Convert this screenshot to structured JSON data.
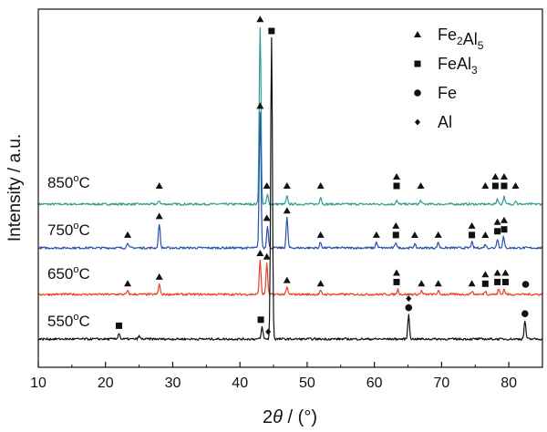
{
  "chart_data": {
    "type": "line",
    "xlabel_prefix": "2",
    "xlabel_theta": "θ",
    "xlabel_suffix": " / (°)",
    "ylabel": "Intensity / a.u.",
    "xlim": [
      10,
      85
    ],
    "xticks": [
      10,
      20,
      30,
      40,
      50,
      60,
      70,
      80
    ],
    "legend": {
      "position": "top-right",
      "entries": [
        {
          "marker": "triangle",
          "base": "Fe",
          "sub1": "2",
          "mid": "Al",
          "sub2": "5"
        },
        {
          "marker": "square",
          "base": "FeAl",
          "sub1": "3",
          "mid": "",
          "sub2": ""
        },
        {
          "marker": "circle",
          "base": "Fe",
          "sub1": "",
          "mid": "",
          "sub2": ""
        },
        {
          "marker": "diamond",
          "base": "Al",
          "sub1": "",
          "mid": "",
          "sub2": ""
        }
      ]
    },
    "series": [
      {
        "temp": "850",
        "unit": "°C",
        "color": "#2e9b93",
        "peaks": [
          [
            43.0,
            0.95
          ],
          [
            44.1,
            0.05
          ],
          [
            47.0,
            0.04
          ],
          [
            52.0,
            0.04
          ],
          [
            28.0,
            0.02
          ],
          [
            63.3,
            0.02
          ],
          [
            66.9,
            0.02
          ],
          [
            78.3,
            0.03
          ],
          [
            79.3,
            0.04
          ],
          [
            81.0,
            0.02
          ]
        ],
        "markers": [
          {
            "x": 28.0,
            "s": "t"
          },
          {
            "x": 43.0,
            "s": "t"
          },
          {
            "x": 44.0,
            "s": "t"
          },
          {
            "x": 47.0,
            "s": "t"
          },
          {
            "x": 52.0,
            "s": "t"
          },
          {
            "x": 63.3,
            "s": "s"
          },
          {
            "x": 63.3,
            "s": "t"
          },
          {
            "x": 66.9,
            "s": "t"
          },
          {
            "x": 76.5,
            "s": "t"
          },
          {
            "x": 78.0,
            "s": "s"
          },
          {
            "x": 78.0,
            "s": "t"
          },
          {
            "x": 79.3,
            "s": "s"
          },
          {
            "x": 79.3,
            "s": "t"
          },
          {
            "x": 81.0,
            "s": "t"
          }
        ]
      },
      {
        "temp": "750",
        "unit": "°C",
        "color": "#2b4fad",
        "peaks": [
          [
            43.0,
            0.72
          ],
          [
            44.1,
            0.12
          ],
          [
            47.0,
            0.16
          ],
          [
            28.0,
            0.13
          ],
          [
            23.3,
            0.03
          ],
          [
            52.0,
            0.03
          ],
          [
            60.3,
            0.03
          ],
          [
            63.2,
            0.03
          ],
          [
            66.0,
            0.02
          ],
          [
            69.5,
            0.03
          ],
          [
            74.5,
            0.03
          ],
          [
            76.5,
            0.02
          ],
          [
            78.3,
            0.05
          ],
          [
            79.2,
            0.06
          ]
        ],
        "markers": [
          {
            "x": 23.3,
            "s": "t"
          },
          {
            "x": 28.0,
            "s": "t"
          },
          {
            "x": 43.0,
            "s": "t"
          },
          {
            "x": 44.0,
            "s": "t"
          },
          {
            "x": 47.0,
            "s": "t"
          },
          {
            "x": 52.0,
            "s": "t"
          },
          {
            "x": 60.3,
            "s": "t"
          },
          {
            "x": 63.2,
            "s": "s"
          },
          {
            "x": 63.2,
            "s": "t"
          },
          {
            "x": 66.0,
            "s": "t"
          },
          {
            "x": 69.5,
            "s": "t"
          },
          {
            "x": 74.5,
            "s": "s"
          },
          {
            "x": 74.5,
            "s": "t"
          },
          {
            "x": 76.5,
            "s": "t"
          },
          {
            "x": 78.3,
            "s": "s"
          },
          {
            "x": 78.3,
            "s": "t"
          },
          {
            "x": 79.3,
            "s": "s"
          },
          {
            "x": 79.3,
            "s": "t"
          }
        ]
      },
      {
        "temp": "650",
        "unit": "°C",
        "color": "#e8402a",
        "peaks": [
          [
            43.0,
            0.2
          ],
          [
            44.0,
            0.18
          ],
          [
            47.0,
            0.04
          ],
          [
            28.0,
            0.06
          ],
          [
            23.3,
            0.02
          ],
          [
            52.0,
            0.02
          ],
          [
            63.5,
            0.03
          ],
          [
            67.0,
            0.02
          ],
          [
            69.5,
            0.02
          ],
          [
            74.5,
            0.02
          ],
          [
            76.5,
            0.02
          ],
          [
            78.5,
            0.03
          ],
          [
            79.3,
            0.03
          ]
        ],
        "markers": [
          {
            "x": 23.3,
            "s": "t"
          },
          {
            "x": 28.0,
            "s": "t"
          },
          {
            "x": 43.0,
            "s": "t"
          },
          {
            "x": 44.0,
            "s": "t"
          },
          {
            "x": 47.0,
            "s": "t"
          },
          {
            "x": 52.0,
            "s": "t"
          },
          {
            "x": 63.3,
            "s": "s"
          },
          {
            "x": 63.3,
            "s": "t"
          },
          {
            "x": 67.0,
            "s": "t"
          },
          {
            "x": 69.5,
            "s": "t"
          },
          {
            "x": 74.5,
            "s": "t"
          },
          {
            "x": 76.5,
            "s": "s"
          },
          {
            "x": 76.5,
            "s": "t"
          },
          {
            "x": 78.3,
            "s": "s"
          },
          {
            "x": 78.3,
            "s": "t"
          },
          {
            "x": 79.5,
            "s": "s"
          },
          {
            "x": 79.5,
            "s": "t"
          },
          {
            "x": 82.5,
            "s": "c"
          }
        ]
      },
      {
        "temp": "550",
        "unit": "°C",
        "color": "#111111",
        "peaks": [
          [
            44.7,
            1.0
          ],
          [
            43.3,
            0.04
          ],
          [
            65.1,
            0.08
          ],
          [
            82.4,
            0.06
          ],
          [
            22.0,
            0.02
          ],
          [
            25.0,
            0.01
          ]
        ],
        "markers": [
          {
            "x": 22.0,
            "s": "s"
          },
          {
            "x": 43.1,
            "s": "s"
          },
          {
            "x": 44.7,
            "s": "s"
          },
          {
            "x": 44.2,
            "s": "d"
          },
          {
            "x": 65.1,
            "s": "c"
          },
          {
            "x": 65.1,
            "s": "d"
          },
          {
            "x": 82.4,
            "s": "c"
          }
        ]
      }
    ]
  }
}
